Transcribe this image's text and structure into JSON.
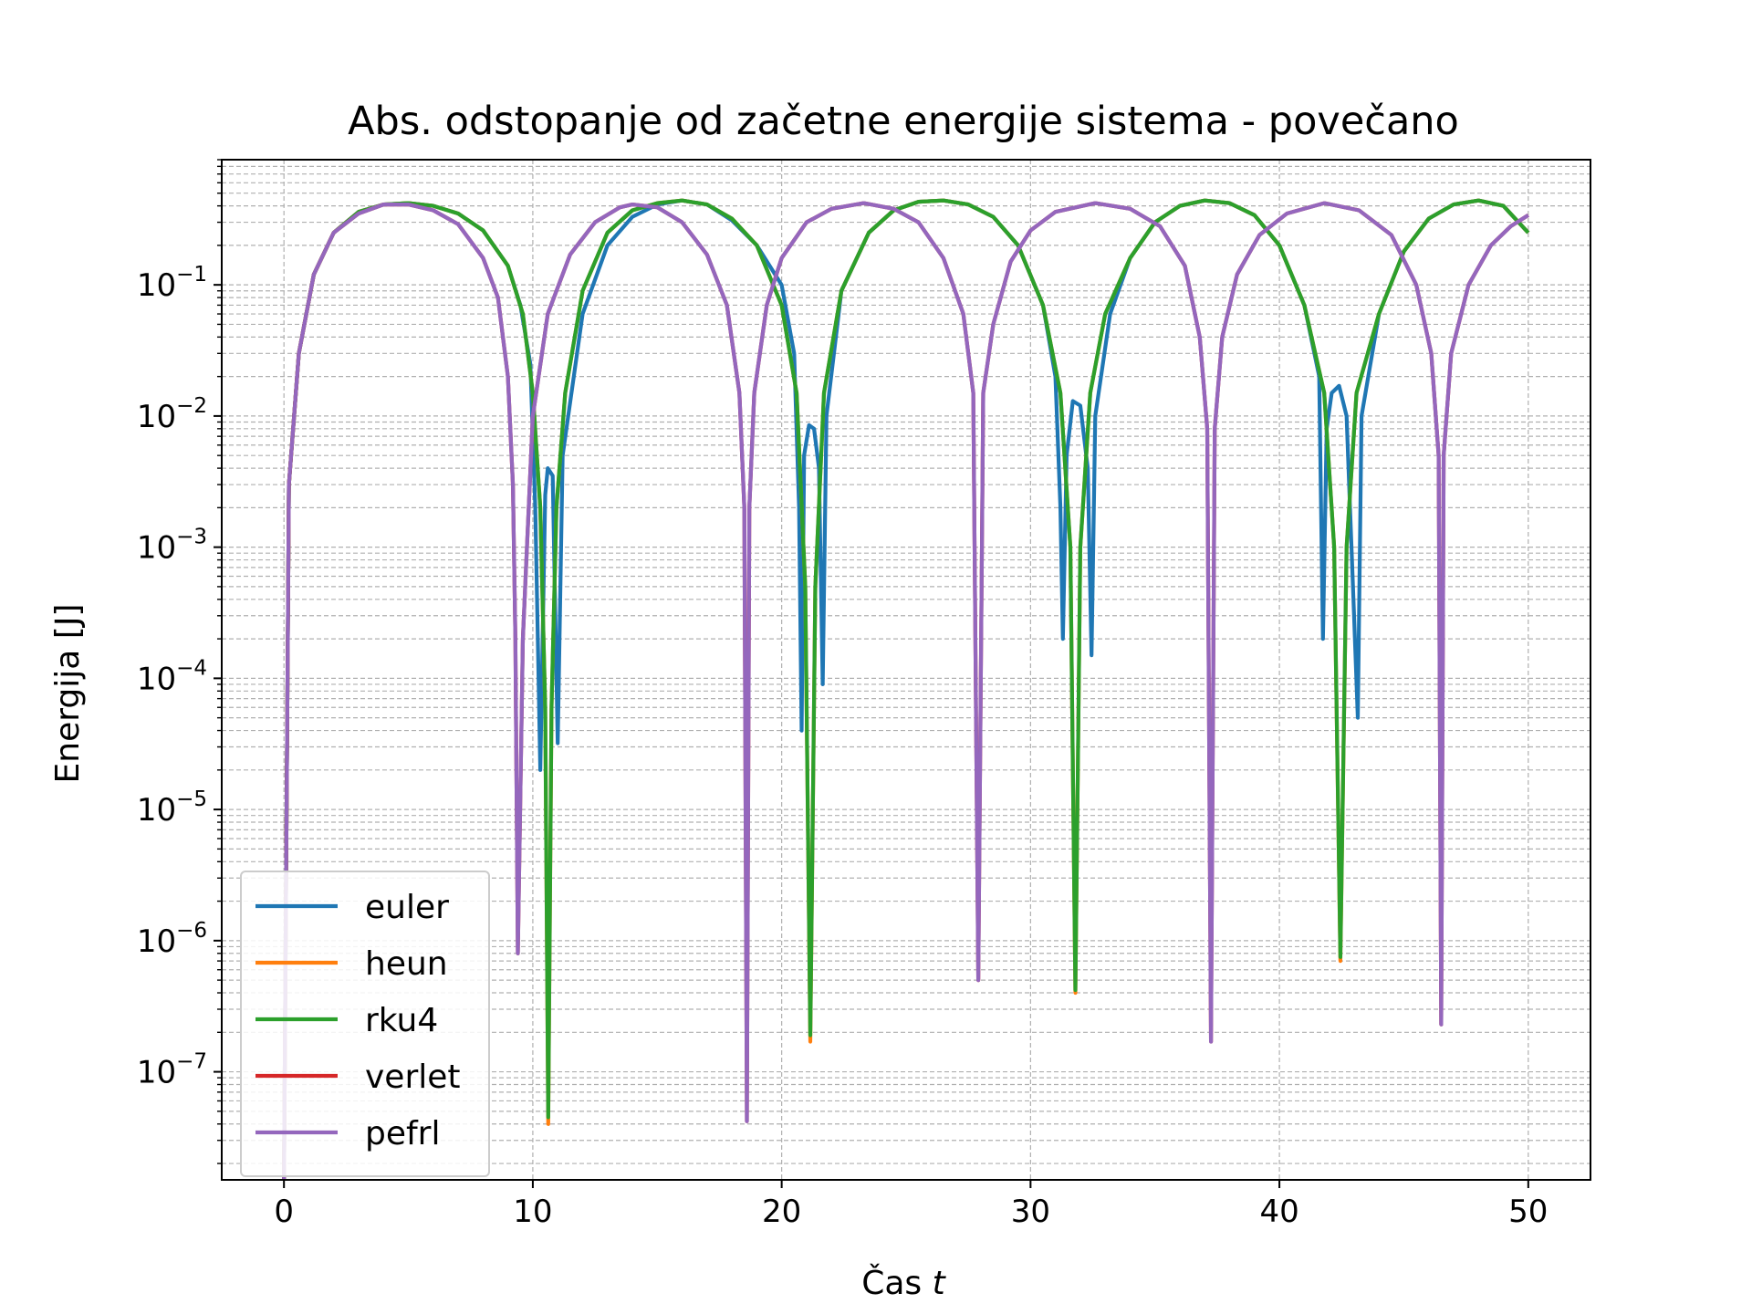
{
  "chart_data": {
    "type": "line",
    "title": "Abs. odstopanje od začetne energije sistema - povečano",
    "xlabel": "Čas",
    "xlabel_var": "t",
    "ylabel": "Energija [J]",
    "yscale": "log",
    "xlim": [
      -2.5,
      52.5
    ],
    "ylim": [
      1.5e-08,
      0.9
    ],
    "x_ticks": [
      0,
      10,
      20,
      30,
      40,
      50
    ],
    "x_tick_labels": [
      "0",
      "10",
      "20",
      "30",
      "40",
      "50"
    ],
    "y_ticks": [
      1e-07,
      1e-06,
      1e-05,
      0.0001,
      0.001,
      0.01,
      0.1
    ],
    "y_tick_base": "10",
    "y_tick_exponents": [
      "−7",
      "−6",
      "−5",
      "−4",
      "−3",
      "−2",
      "−1"
    ],
    "grid": true,
    "grid_minor": true,
    "legend_position": "lower-left",
    "series": [
      {
        "name": "euler",
        "color": "#1f77b4",
        "x": [
          0.0,
          0.2,
          0.6,
          1.2,
          2.0,
          3.0,
          4.0,
          5.0,
          6.0,
          7.0,
          8.0,
          9.0,
          9.5,
          9.9,
          10.1,
          10.2,
          10.3,
          10.5,
          10.6,
          10.8,
          11.0,
          11.2,
          12.0,
          13.0,
          14.0,
          15.0,
          16.0,
          17.0,
          18.0,
          19.0,
          20.0,
          20.5,
          20.7,
          20.8,
          20.9,
          21.1,
          21.3,
          21.5,
          21.65,
          21.8,
          22.4,
          23.5,
          24.5,
          25.5,
          26.5,
          27.5,
          28.5,
          29.5,
          30.5,
          31.0,
          31.2,
          31.3,
          31.45,
          31.7,
          32.0,
          32.3,
          32.45,
          32.6,
          33.2,
          34.0,
          35.0,
          36.0,
          37.0,
          38.0,
          39.0,
          40.0,
          41.0,
          41.6,
          41.75,
          41.9,
          42.1,
          42.4,
          42.7,
          43.0,
          43.15,
          43.3,
          44.0,
          45.0,
          46.0,
          47.0,
          48.0,
          49.0,
          50.0
        ],
        "y": [
          1.5e-08,
          0.003,
          0.03,
          0.12,
          0.25,
          0.36,
          0.41,
          0.42,
          0.4,
          0.35,
          0.26,
          0.14,
          0.07,
          0.025,
          0.002,
          0.0002,
          2e-05,
          0.0025,
          0.004,
          0.0035,
          3.2e-05,
          0.005,
          0.06,
          0.2,
          0.33,
          0.41,
          0.44,
          0.41,
          0.31,
          0.2,
          0.1,
          0.03,
          0.002,
          4e-05,
          0.005,
          0.0085,
          0.008,
          0.004,
          9e-05,
          0.01,
          0.09,
          0.25,
          0.37,
          0.43,
          0.44,
          0.41,
          0.33,
          0.2,
          0.07,
          0.02,
          0.002,
          0.0002,
          0.005,
          0.013,
          0.012,
          0.004,
          0.00015,
          0.01,
          0.06,
          0.16,
          0.3,
          0.4,
          0.44,
          0.42,
          0.34,
          0.2,
          0.07,
          0.02,
          0.0002,
          0.008,
          0.015,
          0.017,
          0.01,
          0.0003,
          5e-05,
          0.01,
          0.06,
          0.18,
          0.32,
          0.41,
          0.44,
          0.4,
          0.25
        ]
      },
      {
        "name": "heun",
        "color": "#ff7f0e",
        "x": [
          0.0,
          0.2,
          0.6,
          1.2,
          2.0,
          3.0,
          4.0,
          5.0,
          6.0,
          7.0,
          8.0,
          9.0,
          9.6,
          10.0,
          10.3,
          10.5,
          10.62,
          10.75,
          10.95,
          11.3,
          12.0,
          13.0,
          14.0,
          15.0,
          16.0,
          17.0,
          18.0,
          19.0,
          20.0,
          20.6,
          20.95,
          21.15,
          21.35,
          21.7,
          22.4,
          23.5,
          24.5,
          25.5,
          26.5,
          27.5,
          28.5,
          29.5,
          30.5,
          31.2,
          31.6,
          31.8,
          32.0,
          32.4,
          33.0,
          34.0,
          35.0,
          36.0,
          37.0,
          38.0,
          39.0,
          40.0,
          41.0,
          41.8,
          42.2,
          42.45,
          42.7,
          43.1,
          44.0,
          45.0,
          46.0,
          47.0,
          48.0,
          49.0,
          50.0
        ],
        "y": [
          1.5e-08,
          0.003,
          0.03,
          0.12,
          0.25,
          0.36,
          0.41,
          0.42,
          0.4,
          0.35,
          0.26,
          0.14,
          0.06,
          0.015,
          0.002,
          6e-05,
          4e-08,
          6e-05,
          0.002,
          0.015,
          0.09,
          0.25,
          0.37,
          0.42,
          0.44,
          0.41,
          0.32,
          0.2,
          0.07,
          0.015,
          0.0005,
          1.7e-07,
          0.0005,
          0.015,
          0.09,
          0.25,
          0.37,
          0.43,
          0.44,
          0.41,
          0.33,
          0.2,
          0.07,
          0.015,
          0.001,
          4e-07,
          0.001,
          0.015,
          0.06,
          0.16,
          0.3,
          0.4,
          0.44,
          0.42,
          0.34,
          0.2,
          0.07,
          0.015,
          0.001,
          7e-07,
          0.001,
          0.015,
          0.06,
          0.18,
          0.32,
          0.41,
          0.44,
          0.4,
          0.25
        ]
      },
      {
        "name": "rku4",
        "color": "#2ca02c",
        "x": [
          0.0,
          0.2,
          0.6,
          1.2,
          2.0,
          3.0,
          4.0,
          5.0,
          6.0,
          7.0,
          8.0,
          9.0,
          9.6,
          10.0,
          10.3,
          10.5,
          10.62,
          10.75,
          10.95,
          11.3,
          12.0,
          13.0,
          14.0,
          15.0,
          16.0,
          17.0,
          18.0,
          19.0,
          20.0,
          20.6,
          20.95,
          21.15,
          21.35,
          21.7,
          22.4,
          23.5,
          24.5,
          25.5,
          26.5,
          27.5,
          28.5,
          29.5,
          30.5,
          31.2,
          31.6,
          31.8,
          32.0,
          32.4,
          33.0,
          34.0,
          35.0,
          36.0,
          37.0,
          38.0,
          39.0,
          40.0,
          41.0,
          41.8,
          42.2,
          42.45,
          42.7,
          43.1,
          44.0,
          45.0,
          46.0,
          47.0,
          48.0,
          49.0,
          50.0
        ],
        "y": [
          1.5e-08,
          0.003,
          0.03,
          0.12,
          0.25,
          0.36,
          0.41,
          0.42,
          0.4,
          0.35,
          0.26,
          0.14,
          0.06,
          0.015,
          0.002,
          6e-05,
          4.5e-08,
          6e-05,
          0.002,
          0.015,
          0.09,
          0.25,
          0.37,
          0.42,
          0.44,
          0.41,
          0.32,
          0.2,
          0.07,
          0.015,
          0.0005,
          1.9e-07,
          0.0005,
          0.015,
          0.09,
          0.25,
          0.37,
          0.43,
          0.44,
          0.41,
          0.33,
          0.2,
          0.07,
          0.015,
          0.001,
          4.2e-07,
          0.001,
          0.015,
          0.06,
          0.16,
          0.3,
          0.4,
          0.44,
          0.42,
          0.34,
          0.2,
          0.07,
          0.015,
          0.001,
          7.5e-07,
          0.001,
          0.015,
          0.06,
          0.18,
          0.32,
          0.41,
          0.44,
          0.4,
          0.25
        ]
      },
      {
        "name": "verlet",
        "color": "#d62728",
        "x": [
          0.0,
          0.2,
          0.6,
          1.2,
          2.0,
          3.0,
          4.0,
          5.0,
          6.0,
          7.0,
          8.0,
          8.6,
          9.0,
          9.2,
          9.3,
          9.4,
          9.6,
          10.0,
          10.6,
          11.5,
          12.5,
          13.5,
          14.0,
          15.0,
          16.0,
          17.0,
          17.8,
          18.3,
          18.5,
          18.6,
          18.7,
          18.9,
          19.4,
          20.0,
          21.0,
          22.0,
          23.3,
          24.5,
          25.5,
          26.5,
          27.3,
          27.7,
          27.9,
          28.1,
          28.5,
          29.2,
          30.0,
          31.0,
          32.6,
          34.0,
          35.2,
          36.2,
          36.8,
          37.1,
          37.25,
          37.4,
          37.7,
          38.3,
          39.2,
          40.3,
          41.8,
          43.2,
          44.5,
          45.5,
          46.1,
          46.4,
          46.5,
          46.6,
          46.9,
          47.6,
          48.5,
          49.3,
          50.0
        ],
        "y": [
          1.5e-08,
          0.003,
          0.03,
          0.12,
          0.25,
          0.35,
          0.41,
          0.41,
          0.37,
          0.29,
          0.16,
          0.08,
          0.02,
          0.003,
          0.0002,
          8e-07,
          0.0002,
          0.01,
          0.06,
          0.17,
          0.3,
          0.39,
          0.41,
          0.39,
          0.3,
          0.17,
          0.07,
          0.015,
          0.002,
          4.2e-08,
          0.002,
          0.015,
          0.07,
          0.16,
          0.3,
          0.38,
          0.42,
          0.38,
          0.3,
          0.16,
          0.06,
          0.015,
          5e-07,
          0.015,
          0.05,
          0.15,
          0.26,
          0.36,
          0.42,
          0.38,
          0.28,
          0.14,
          0.04,
          0.008,
          1.7e-07,
          0.008,
          0.04,
          0.12,
          0.24,
          0.35,
          0.42,
          0.37,
          0.24,
          0.1,
          0.03,
          0.005,
          2.3e-07,
          0.005,
          0.03,
          0.1,
          0.2,
          0.28,
          0.34
        ]
      },
      {
        "name": "pefrl",
        "color": "#9467bd",
        "x": [
          0.0,
          0.2,
          0.6,
          1.2,
          2.0,
          3.0,
          4.0,
          5.0,
          6.0,
          7.0,
          8.0,
          8.6,
          9.0,
          9.2,
          9.3,
          9.4,
          9.6,
          10.0,
          10.6,
          11.5,
          12.5,
          13.5,
          14.0,
          15.0,
          16.0,
          17.0,
          17.8,
          18.3,
          18.5,
          18.6,
          18.7,
          18.9,
          19.4,
          20.0,
          21.0,
          22.0,
          23.3,
          24.5,
          25.5,
          26.5,
          27.3,
          27.7,
          27.9,
          28.1,
          28.5,
          29.2,
          30.0,
          31.0,
          32.6,
          34.0,
          35.2,
          36.2,
          36.8,
          37.1,
          37.25,
          37.4,
          37.7,
          38.3,
          39.2,
          40.3,
          41.8,
          43.2,
          44.5,
          45.5,
          46.1,
          46.4,
          46.5,
          46.6,
          46.9,
          47.6,
          48.5,
          49.3,
          50.0
        ],
        "y": [
          1.5e-08,
          0.003,
          0.03,
          0.12,
          0.25,
          0.35,
          0.41,
          0.41,
          0.37,
          0.29,
          0.16,
          0.08,
          0.02,
          0.003,
          0.0002,
          8e-07,
          0.0002,
          0.01,
          0.06,
          0.17,
          0.3,
          0.39,
          0.41,
          0.39,
          0.3,
          0.17,
          0.07,
          0.015,
          0.002,
          4.2e-08,
          0.002,
          0.015,
          0.07,
          0.16,
          0.3,
          0.38,
          0.42,
          0.38,
          0.3,
          0.16,
          0.06,
          0.015,
          5e-07,
          0.015,
          0.05,
          0.15,
          0.26,
          0.36,
          0.42,
          0.38,
          0.28,
          0.14,
          0.04,
          0.008,
          1.7e-07,
          0.008,
          0.04,
          0.12,
          0.24,
          0.35,
          0.42,
          0.37,
          0.24,
          0.1,
          0.03,
          0.005,
          2.3e-07,
          0.005,
          0.03,
          0.1,
          0.2,
          0.28,
          0.34
        ]
      }
    ]
  }
}
